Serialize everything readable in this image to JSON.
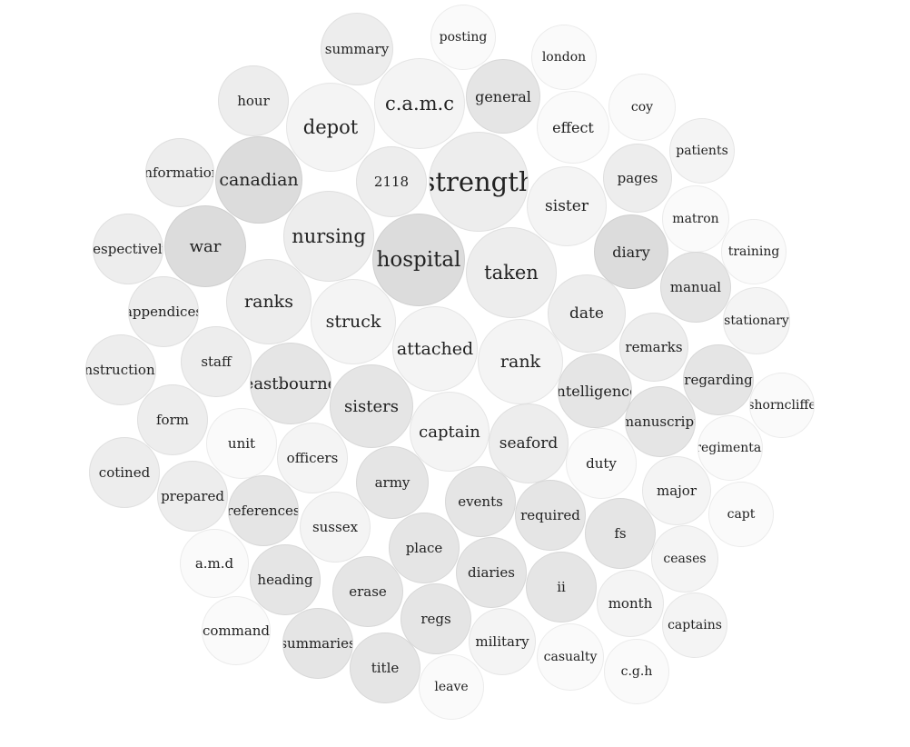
{
  "colors": {
    "w1": "#fafafa",
    "w2": "#f4f4f4",
    "w3": "#ededed",
    "w4": "#e5e5e5",
    "w5": "#dcdcdc",
    "text": "#222222"
  },
  "chart_data": {
    "type": "bubble",
    "words": [
      {
        "text": "summary",
        "w": 3
      },
      {
        "text": "posting",
        "w": 1
      },
      {
        "text": "london",
        "w": 1
      },
      {
        "text": "hour",
        "w": 3
      },
      {
        "text": "c.a.m.c",
        "w": 2
      },
      {
        "text": "general",
        "w": 4
      },
      {
        "text": "coy",
        "w": 1
      },
      {
        "text": "depot",
        "w": 2
      },
      {
        "text": "effect",
        "w": 1
      },
      {
        "text": "patients",
        "w": 2
      },
      {
        "text": "information",
        "w": 3
      },
      {
        "text": "canadian",
        "w": 5
      },
      {
        "text": "2118",
        "w": 3
      },
      {
        "text": "strength",
        "w": 3
      },
      {
        "text": "pages",
        "w": 3
      },
      {
        "text": "sister",
        "w": 2
      },
      {
        "text": "matron",
        "w": 1
      },
      {
        "text": "respectively",
        "w": 3
      },
      {
        "text": "war",
        "w": 5
      },
      {
        "text": "nursing",
        "w": 3
      },
      {
        "text": "hospital",
        "w": 5
      },
      {
        "text": "taken",
        "w": 3
      },
      {
        "text": "diary",
        "w": 5
      },
      {
        "text": "training",
        "w": 1
      },
      {
        "text": "manual",
        "w": 4
      },
      {
        "text": "appendices",
        "w": 3
      },
      {
        "text": "ranks",
        "w": 3
      },
      {
        "text": "struck",
        "w": 2
      },
      {
        "text": "date",
        "w": 3
      },
      {
        "text": "stationary",
        "w": 2
      },
      {
        "text": "attached",
        "w": 2
      },
      {
        "text": "remarks",
        "w": 3
      },
      {
        "text": "staff",
        "w": 3
      },
      {
        "text": "rank",
        "w": 2
      },
      {
        "text": "instructions",
        "w": 3
      },
      {
        "text": "regarding",
        "w": 4
      },
      {
        "text": "eastbourne",
        "w": 4
      },
      {
        "text": "intelligence",
        "w": 4
      },
      {
        "text": "shorncliffe",
        "w": 1
      },
      {
        "text": "sisters",
        "w": 4
      },
      {
        "text": "manuscript",
        "w": 4
      },
      {
        "text": "form",
        "w": 3
      },
      {
        "text": "captain",
        "w": 2
      },
      {
        "text": "seaford",
        "w": 3
      },
      {
        "text": "unit",
        "w": 1
      },
      {
        "text": "regimental",
        "w": 1
      },
      {
        "text": "officers",
        "w": 2
      },
      {
        "text": "duty",
        "w": 1
      },
      {
        "text": "cotined",
        "w": 3
      },
      {
        "text": "army",
        "w": 4
      },
      {
        "text": "major",
        "w": 2
      },
      {
        "text": "prepared",
        "w": 3
      },
      {
        "text": "capt",
        "w": 1
      },
      {
        "text": "events",
        "w": 4
      },
      {
        "text": "references",
        "w": 4
      },
      {
        "text": "required",
        "w": 4
      },
      {
        "text": "sussex",
        "w": 2
      },
      {
        "text": "fs",
        "w": 4
      },
      {
        "text": "place",
        "w": 4
      },
      {
        "text": "ceases",
        "w": 2
      },
      {
        "text": "a.m.d",
        "w": 1
      },
      {
        "text": "diaries",
        "w": 4
      },
      {
        "text": "heading",
        "w": 4
      },
      {
        "text": "ii",
        "w": 4
      },
      {
        "text": "erase",
        "w": 4
      },
      {
        "text": "month",
        "w": 2
      },
      {
        "text": "command",
        "w": 1
      },
      {
        "text": "regs",
        "w": 4
      },
      {
        "text": "captains",
        "w": 2
      },
      {
        "text": "summaries",
        "w": 4
      },
      {
        "text": "military",
        "w": 2
      },
      {
        "text": "casualty",
        "w": 1
      },
      {
        "text": "title",
        "w": 4
      },
      {
        "text": "c.g.h",
        "w": 1
      },
      {
        "text": "leave",
        "w": 1
      }
    ]
  }
}
